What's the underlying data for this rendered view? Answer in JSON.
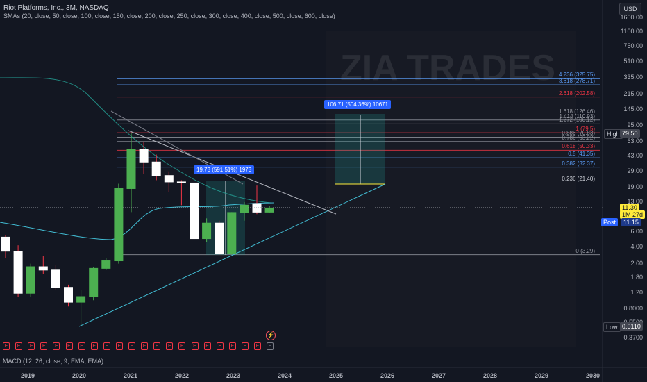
{
  "header": {
    "title": "Riot Platforms, Inc., 3M, NASDAQ",
    "indicator": "SMAs (20, close, 50, close, 100, close, 150, close, 200, close, 250, close, 300, close, 400, close, 500, close, 600, close)"
  },
  "currency": "USD",
  "watermark": "ZIA TRADES",
  "price_axis": [
    "1600.00",
    "1100.00",
    "750.00",
    "510.00",
    "335.00",
    "215.00",
    "145.00",
    "95.00",
    "63.00",
    "43.00",
    "29.00",
    "19.00",
    "13.00",
    "9.00",
    "6.00",
    "4.00",
    "2.60",
    "1.80",
    "1.20",
    "0.8000",
    "0.5500",
    "0.3700"
  ],
  "price_tags": {
    "high_label": "High",
    "high_value": "79.50",
    "last_value": "11.30",
    "countdown": "1M 27d",
    "post_label": "Post",
    "post_value": "11.15",
    "low_label": "Low",
    "low_value": "0.5110"
  },
  "fib_levels": [
    {
      "label": "4.236 (325.75)",
      "color": "#5b9cf6"
    },
    {
      "label": "3.618 (278.71)",
      "color": "#5b9cf6"
    },
    {
      "label": "2.618 (202.58)",
      "color": "#f23645"
    },
    {
      "label": "1.618 (126.46)",
      "color": "#9598a1"
    },
    {
      "label": "1.414 (110.93)",
      "color": "#9598a1"
    },
    {
      "label": "1.272 (100.12)",
      "color": "#9598a1"
    },
    {
      "label": "1 (79.5)",
      "color": "#f23645"
    },
    {
      "label": "0.886 (70.83)",
      "color": "#9598a1"
    },
    {
      "label": "0.786 (63.22)",
      "color": "#9598a1"
    },
    {
      "label": "0.618 (50.33)",
      "color": "#f23645"
    },
    {
      "label": "0.5 (41.35)",
      "color": "#5b9cf6"
    },
    {
      "label": "0.382 (32.37)",
      "color": "#5b9cf6"
    },
    {
      "label": "0.236 (21.40)",
      "color": "#cfd2da"
    },
    {
      "label": "0 (3.29)",
      "color": "#9598a1"
    }
  ],
  "measure_labels": {
    "small": "19.73 (591.51%) 1973",
    "large": "106.71 (504.36%) 10671"
  },
  "x_axis": [
    "2019",
    "2020",
    "2021",
    "2022",
    "2023",
    "2024",
    "2025",
    "2026",
    "2027",
    "2028",
    "2029",
    "2030"
  ],
  "macd_label": "MACD (12, 26, close, 9, EMA, EMA)",
  "earnings_marker": "E",
  "candles": [
    {
      "o": 5.2,
      "h": 5.5,
      "l": 3.0,
      "c": 3.6
    },
    {
      "o": 3.6,
      "h": 4.2,
      "l": 1.1,
      "c": 1.2
    },
    {
      "o": 1.2,
      "h": 2.6,
      "l": 1.1,
      "c": 2.4
    },
    {
      "o": 2.4,
      "h": 3.2,
      "l": 2.0,
      "c": 2.2
    },
    {
      "o": 2.2,
      "h": 2.5,
      "l": 1.3,
      "c": 1.4
    },
    {
      "o": 1.4,
      "h": 1.5,
      "l": 0.85,
      "c": 0.95
    },
    {
      "o": 0.95,
      "h": 1.3,
      "l": 0.511,
      "c": 1.1
    },
    {
      "o": 1.1,
      "h": 2.4,
      "l": 1.0,
      "c": 2.3
    },
    {
      "o": 2.3,
      "h": 3.0,
      "l": 2.2,
      "c": 2.8
    },
    {
      "o": 2.8,
      "h": 21.0,
      "l": 2.6,
      "c": 18.5
    },
    {
      "o": 18.5,
      "h": 79.5,
      "l": 10.0,
      "c": 52.0
    },
    {
      "o": 52.0,
      "h": 63.0,
      "l": 27.0,
      "c": 37.0
    },
    {
      "o": 37.0,
      "h": 45.0,
      "l": 23.0,
      "c": 26.0
    },
    {
      "o": 26.0,
      "h": 29.0,
      "l": 17.0,
      "c": 22.0
    },
    {
      "o": 22.0,
      "h": 23.0,
      "l": 12.0,
      "c": 21.4
    },
    {
      "o": 21.4,
      "h": 23.0,
      "l": 4.5,
      "c": 5.0
    },
    {
      "o": 5.0,
      "h": 8.5,
      "l": 4.6,
      "c": 7.5
    },
    {
      "o": 7.5,
      "h": 8.0,
      "l": 3.3,
      "c": 3.4
    },
    {
      "o": 3.4,
      "h": 10.0,
      "l": 3.3,
      "c": 9.9
    },
    {
      "o": 9.9,
      "h": 13.0,
      "l": 8.0,
      "c": 12.0
    },
    {
      "o": 12.5,
      "h": 20.0,
      "l": 9.5,
      "c": 10.0
    },
    {
      "o": 10.0,
      "h": 11.8,
      "l": 9.8,
      "c": 11.15
    }
  ]
}
